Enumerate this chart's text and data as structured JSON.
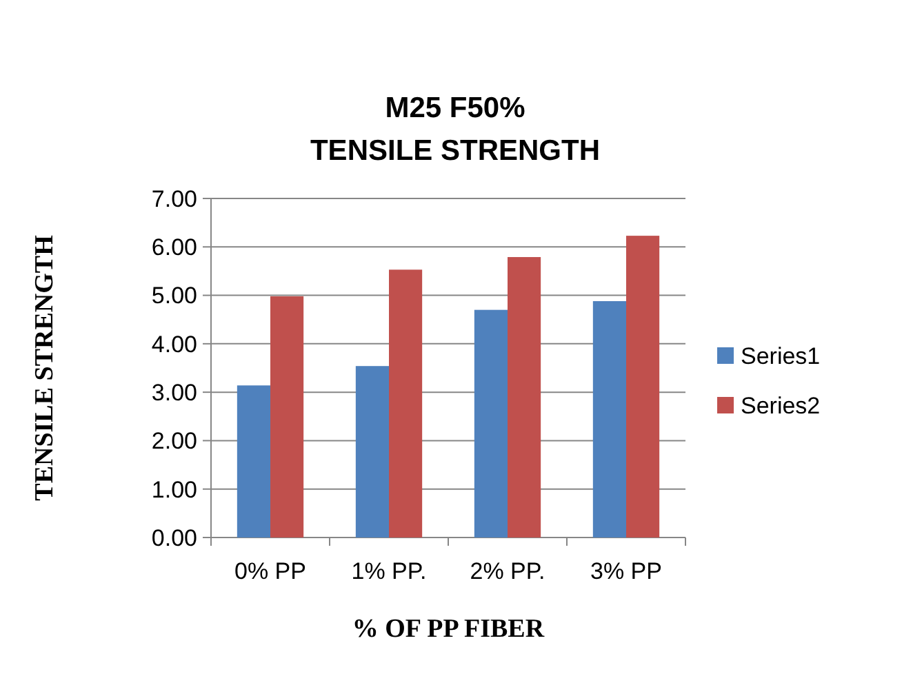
{
  "chart_data": {
    "type": "bar",
    "title": "M25 F50%\nTENSILE STRENGTH",
    "xlabel": "% OF PP FIBER",
    "ylabel": "TENSILE STRENGTH",
    "categories": [
      "0% PP",
      "1% PP.",
      "2% PP.",
      "3% PP"
    ],
    "series": [
      {
        "name": "Series1",
        "color": "#4f81bd",
        "values": [
          3.14,
          3.54,
          4.7,
          4.88
        ]
      },
      {
        "name": "Series2",
        "color": "#c0504d",
        "values": [
          4.98,
          5.53,
          5.79,
          6.23
        ]
      }
    ],
    "ylim": [
      0,
      7
    ],
    "yticks": [
      {
        "value": 0,
        "label": "0.00"
      },
      {
        "value": 1,
        "label": "1.00"
      },
      {
        "value": 2,
        "label": "2.00"
      },
      {
        "value": 3,
        "label": "3.00"
      },
      {
        "value": 4,
        "label": "4.00"
      },
      {
        "value": 5,
        "label": "5.00"
      },
      {
        "value": 6,
        "label": "6.00"
      },
      {
        "value": 7,
        "label": "7.00"
      }
    ],
    "grid": "y",
    "legend": "right"
  }
}
